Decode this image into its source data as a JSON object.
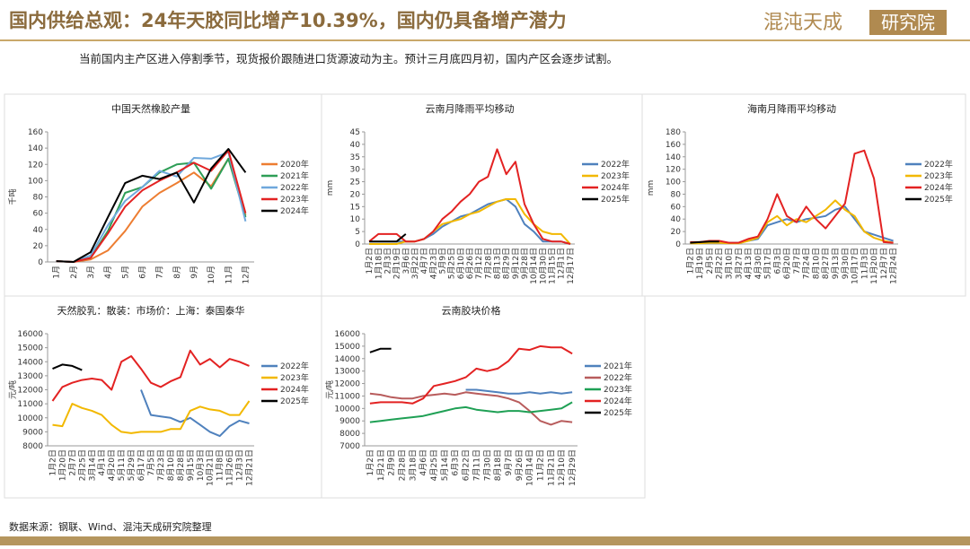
{
  "header": {
    "title": "国内供给总观：24年天胶同比增产10.39%，国内仍具备增产潜力",
    "logo_name": "混沌天成",
    "logo_unit": "研究院"
  },
  "subtitle": "当前国内主产区进入停割季节，现货报价跟随进口货源波动为主。预计三月底四月初，国内产区会逐步试割。",
  "source": "数据来源：钢联、Wind、混沌天成研究院整理",
  "chart_data": [
    {
      "type": "line",
      "title": "中国天然橡胶产量",
      "y_label": "千吨",
      "ylim": [
        0,
        160
      ],
      "yticks": [
        0,
        20,
        40,
        60,
        80,
        100,
        120,
        140,
        160
      ],
      "categories": [
        "1月",
        "2月",
        "3月",
        "4月",
        "5月",
        "6月",
        "7月",
        "8月",
        "9月",
        "10月",
        "11月",
        "12月"
      ],
      "series": [
        {
          "name": "2020年",
          "color": "#ED7D31",
          "values": [
            1,
            0,
            3,
            14,
            38,
            68,
            85,
            97,
            110,
            93,
            127,
            57
          ]
        },
        {
          "name": "2021年",
          "color": "#2E9E57",
          "values": [
            1,
            0,
            5,
            38,
            85,
            92,
            110,
            120,
            122,
            90,
            127,
            55
          ]
        },
        {
          "name": "2022年",
          "color": "#6FA8DC",
          "values": [
            1,
            0,
            8,
            45,
            75,
            92,
            112,
            105,
            128,
            127,
            135,
            50
          ]
        },
        {
          "name": "2023年",
          "color": "#E32222",
          "values": [
            1,
            0,
            5,
            35,
            68,
            88,
            100,
            110,
            122,
            112,
            137,
            60
          ]
        },
        {
          "name": "2024年",
          "color": "#000000",
          "values": [
            1,
            0,
            12,
            55,
            97,
            106,
            102,
            110,
            73,
            115,
            139,
            110
          ]
        }
      ]
    },
    {
      "type": "line",
      "title": "云南月降雨平均移动",
      "y_label": "mm",
      "ylim": [
        0,
        45
      ],
      "yticks": [
        0,
        5,
        10,
        15,
        20,
        25,
        30,
        35,
        40,
        45
      ],
      "categories": [
        "1月2日",
        "1月18日",
        "2月3日",
        "2月19日",
        "3月6日",
        "3月22日",
        "4月7日",
        "4月23日",
        "5月9日",
        "5月25日",
        "6月10日",
        "6月26日",
        "7月12日",
        "7月28日",
        "8月13日",
        "8月29日",
        "9月12日",
        "9月28日",
        "10月14日",
        "10月30日",
        "11月15日",
        "12月1日",
        "12月17日"
      ],
      "series": [
        {
          "name": "2022年",
          "color": "#4F81BD",
          "values": [
            1,
            1,
            1,
            1,
            1,
            1,
            2,
            4,
            7,
            9,
            11,
            12,
            14,
            16,
            17,
            18,
            15,
            8,
            5,
            1,
            1,
            1,
            0
          ]
        },
        {
          "name": "2023年",
          "color": "#F2B800",
          "values": [
            0,
            0,
            0,
            0,
            1,
            1,
            2,
            5,
            8,
            9,
            10,
            12,
            13,
            15,
            17,
            18,
            18,
            12,
            8,
            5,
            4,
            4,
            0
          ]
        },
        {
          "name": "2024年",
          "color": "#E32222",
          "values": [
            1,
            4,
            4,
            4,
            1,
            1,
            2,
            5,
            10,
            13,
            17,
            20,
            25,
            27,
            38,
            28,
            33,
            16,
            8,
            2,
            1,
            1,
            0
          ]
        },
        {
          "name": "2025年",
          "color": "#000000",
          "values": [
            1,
            1,
            1,
            1,
            4,
            null,
            null,
            null,
            null,
            null,
            null,
            null,
            null,
            null,
            null,
            null,
            null,
            null,
            null,
            null,
            null,
            null,
            null
          ]
        }
      ]
    },
    {
      "type": "line",
      "title": "海南月降雨平均移动",
      "y_label": "mm",
      "ylim": [
        0,
        180
      ],
      "yticks": [
        0,
        20,
        40,
        60,
        80,
        100,
        120,
        140,
        160,
        180
      ],
      "categories": [
        "1月2日",
        "1月19日",
        "2月5日",
        "2月22日",
        "3月10日",
        "3月27日",
        "4月13日",
        "4月30日",
        "5月17日",
        "6月3日",
        "6月20日",
        "7月7日",
        "7月24日",
        "8月10日",
        "8月27日",
        "9月13日",
        "9月30日",
        "10月17日",
        "11月3日",
        "11月20日",
        "12月7日",
        "12月24日"
      ],
      "series": [
        {
          "name": "2022年",
          "color": "#4F81BD",
          "values": [
            2,
            2,
            3,
            3,
            2,
            2,
            5,
            8,
            30,
            35,
            40,
            35,
            40,
            42,
            45,
            55,
            60,
            40,
            20,
            15,
            10,
            5
          ]
        },
        {
          "name": "2023年",
          "color": "#F2B800",
          "values": [
            1,
            1,
            2,
            2,
            1,
            1,
            5,
            10,
            35,
            45,
            30,
            40,
            35,
            45,
            55,
            70,
            55,
            45,
            20,
            10,
            5,
            2
          ]
        },
        {
          "name": "2024年",
          "color": "#E32222",
          "values": [
            3,
            3,
            5,
            5,
            2,
            2,
            8,
            12,
            40,
            80,
            45,
            35,
            60,
            40,
            25,
            45,
            65,
            145,
            150,
            105,
            3,
            2
          ]
        },
        {
          "name": "2025年",
          "color": "#000000",
          "values": [
            2,
            3,
            4,
            4,
            null,
            null,
            null,
            null,
            null,
            null,
            null,
            null,
            null,
            null,
            null,
            null,
            null,
            null,
            null,
            null,
            null,
            null
          ]
        }
      ]
    },
    {
      "type": "line",
      "title": "天然胶乳：散装：市场价：上海：泰国泰华",
      "y_label": "元/吨",
      "ylim": [
        8000,
        16000
      ],
      "yticks": [
        8000,
        9000,
        10000,
        11000,
        12000,
        13000,
        14000,
        15000,
        16000
      ],
      "categories": [
        "1月2日",
        "1月20日",
        "2月7日",
        "2月25日",
        "3月14日",
        "4月1日",
        "4月20日",
        "5月11日",
        "5月29日",
        "6月17日",
        "7月5日",
        "7月23日",
        "8月10日",
        "8月28日",
        "9月15日",
        "10月3日",
        "10月21日",
        "11月8日",
        "11月26日",
        "12月3日",
        "12月21日"
      ],
      "series": [
        {
          "name": "2022年",
          "color": "#4F81BD",
          "values": [
            null,
            null,
            null,
            null,
            null,
            null,
            null,
            null,
            null,
            12000,
            10200,
            10100,
            10000,
            9700,
            10000,
            9500,
            9000,
            8700,
            9400,
            9800,
            9600
          ]
        },
        {
          "name": "2023年",
          "color": "#F2B800",
          "values": [
            9500,
            9400,
            11000,
            10700,
            10500,
            10200,
            9500,
            9000,
            8900,
            9000,
            9000,
            9000,
            9200,
            9200,
            10500,
            10800,
            10600,
            10500,
            10200,
            10200,
            11200
          ]
        },
        {
          "name": "2024年",
          "color": "#E32222",
          "values": [
            11200,
            12200,
            12500,
            12700,
            12800,
            12700,
            12000,
            14000,
            14400,
            13500,
            12500,
            12200,
            12600,
            12900,
            14800,
            13800,
            14200,
            13600,
            14200,
            14000,
            13700
          ]
        },
        {
          "name": "2025年",
          "color": "#000000",
          "values": [
            13500,
            13800,
            13700,
            13400,
            null,
            null,
            null,
            null,
            null,
            null,
            null,
            null,
            null,
            null,
            null,
            null,
            null,
            null,
            null,
            null,
            null
          ]
        }
      ]
    },
    {
      "type": "line",
      "title": "云南胶块价格",
      "y_label": "元/吨",
      "ylim": [
        7000,
        16000
      ],
      "yticks": [
        7000,
        8000,
        9000,
        10000,
        11000,
        12000,
        13000,
        14000,
        15000,
        16000
      ],
      "categories": [
        "1月2日",
        "1月21日",
        "2月9日",
        "2月28日",
        "3月18日",
        "4月6日",
        "4月25日",
        "5月14日",
        "6月3日",
        "6月22日",
        "7月11日",
        "7月30日",
        "8月18日",
        "9月7日",
        "9月26日",
        "10月14日",
        "11月2日",
        "11月21日",
        "12月10日",
        "12月29日"
      ],
      "series": [
        {
          "name": "2021年",
          "color": "#4F81BD",
          "values": [
            null,
            null,
            null,
            null,
            null,
            null,
            null,
            null,
            null,
            11500,
            11500,
            11400,
            11300,
            11200,
            11200,
            11300,
            11200,
            11300,
            11200,
            11300
          ]
        },
        {
          "name": "2022年",
          "color": "#B85C5C",
          "values": [
            11200,
            11100,
            10900,
            10800,
            10800,
            11000,
            11100,
            11200,
            11100,
            11300,
            11200,
            11100,
            11000,
            10800,
            10500,
            9800,
            9000,
            8700,
            9000,
            8900
          ]
        },
        {
          "name": "2023年",
          "color": "#1FA055",
          "values": [
            8900,
            9000,
            9100,
            9200,
            9300,
            9400,
            9600,
            9800,
            10000,
            10100,
            9900,
            9800,
            9700,
            9800,
            9800,
            9700,
            9800,
            9900,
            10000,
            10500
          ]
        },
        {
          "name": "2024年",
          "color": "#E32222",
          "values": [
            10400,
            10500,
            10500,
            10500,
            10400,
            10800,
            11800,
            12000,
            12200,
            12500,
            13200,
            13000,
            13200,
            13800,
            14800,
            14700,
            15000,
            14900,
            14900,
            14400
          ]
        },
        {
          "name": "2025年",
          "color": "#000000",
          "values": [
            14500,
            14800,
            14800,
            null,
            null,
            null,
            null,
            null,
            null,
            null,
            null,
            null,
            null,
            null,
            null,
            null,
            null,
            null,
            null,
            null
          ]
        }
      ]
    }
  ]
}
